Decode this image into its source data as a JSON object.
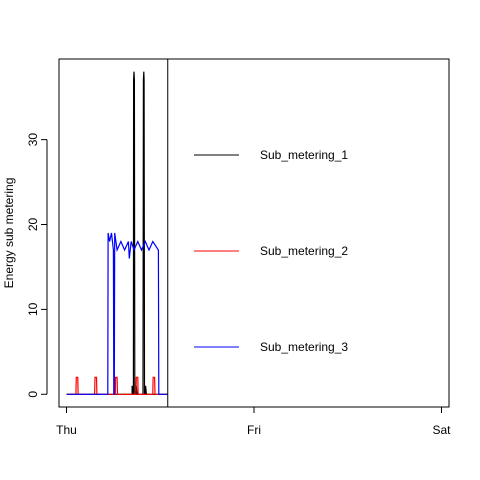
{
  "chart_data": {
    "type": "line",
    "title": "",
    "xlabel": "",
    "ylabel": "Energy sub metering",
    "x_ticks": [
      {
        "label": "Thu",
        "value": 0
      },
      {
        "label": "Fri",
        "value": 1
      },
      {
        "label": "Sat",
        "value": 2
      }
    ],
    "xlim": [
      -0.04,
      2.04
    ],
    "ylim": [
      -1.5,
      39.5
    ],
    "y_ticks": [
      0,
      10,
      20,
      30
    ],
    "grid": false,
    "legend": {
      "placement": "right",
      "boxed": true,
      "entries": [
        "Sub_metering_1",
        "Sub_metering_2",
        "Sub_metering_3"
      ]
    },
    "series": [
      {
        "name": "Sub_metering_1",
        "color": "#000000",
        "points": [
          [
            0.0,
            0
          ],
          [
            0.35,
            0
          ],
          [
            0.35,
            1
          ],
          [
            0.352,
            0
          ],
          [
            0.357,
            0
          ],
          [
            0.358,
            37
          ],
          [
            0.36,
            38
          ],
          [
            0.362,
            37
          ],
          [
            0.364,
            0
          ],
          [
            0.37,
            0
          ],
          [
            0.372,
            1
          ],
          [
            0.376,
            0
          ],
          [
            0.408,
            0
          ],
          [
            0.41,
            37
          ],
          [
            0.412,
            38
          ],
          [
            0.414,
            37
          ],
          [
            0.416,
            0
          ],
          [
            0.42,
            0
          ],
          [
            0.422,
            1
          ],
          [
            0.426,
            0
          ],
          [
            0.54,
            0
          ]
        ]
      },
      {
        "name": "Sub_metering_2",
        "color": "#ff0000",
        "points": [
          [
            0.0,
            0
          ],
          [
            0.05,
            0
          ],
          [
            0.052,
            2
          ],
          [
            0.06,
            2
          ],
          [
            0.062,
            0
          ],
          [
            0.15,
            0
          ],
          [
            0.152,
            2
          ],
          [
            0.16,
            2
          ],
          [
            0.162,
            0
          ],
          [
            0.26,
            0
          ],
          [
            0.262,
            2
          ],
          [
            0.27,
            2
          ],
          [
            0.272,
            0
          ],
          [
            0.37,
            0
          ],
          [
            0.372,
            2
          ],
          [
            0.38,
            2
          ],
          [
            0.382,
            0
          ],
          [
            0.46,
            0
          ],
          [
            0.462,
            2
          ],
          [
            0.47,
            2
          ],
          [
            0.472,
            0
          ],
          [
            0.54,
            0
          ]
        ]
      },
      {
        "name": "Sub_metering_3",
        "color": "#0000ff",
        "points": [
          [
            0.0,
            0
          ],
          [
            0.22,
            0
          ],
          [
            0.222,
            19
          ],
          [
            0.23,
            18
          ],
          [
            0.24,
            19
          ],
          [
            0.25,
            17
          ],
          [
            0.252,
            0
          ],
          [
            0.255,
            0
          ],
          [
            0.257,
            19
          ],
          [
            0.27,
            17
          ],
          [
            0.29,
            18
          ],
          [
            0.31,
            17
          ],
          [
            0.33,
            18
          ],
          [
            0.335,
            16
          ],
          [
            0.345,
            18
          ],
          [
            0.36,
            17
          ],
          [
            0.38,
            18
          ],
          [
            0.4,
            17
          ],
          [
            0.42,
            18
          ],
          [
            0.44,
            17
          ],
          [
            0.46,
            18
          ],
          [
            0.49,
            17
          ],
          [
            0.492,
            0
          ],
          [
            0.54,
            0
          ]
        ]
      }
    ]
  }
}
